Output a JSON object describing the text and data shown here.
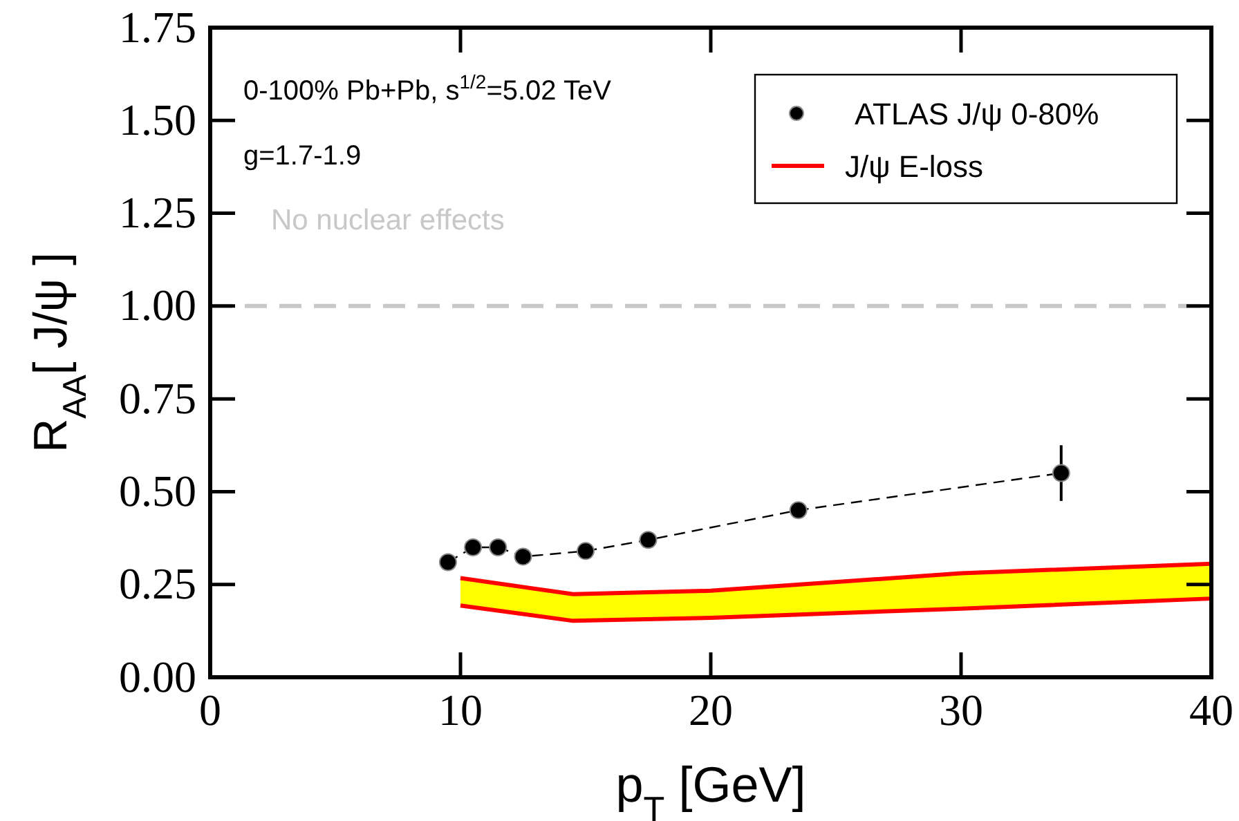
{
  "chart_data": {
    "type": "line",
    "xlabel": "p$_{T}$ [GeV]",
    "ylabel": "R$_{AA}$[ J/ψ ]",
    "annotations": [
      "0-100% Pb+Pb, s$^{1/2}$=5.02 TeV",
      "g=1.7-1.9",
      "No nuclear effects"
    ],
    "xlim": [
      0,
      40
    ],
    "xticks": [
      0,
      10,
      20,
      30,
      40
    ],
    "ylim": [
      0,
      1.75
    ],
    "yticks": [
      {
        "value": 0,
        "label": "0.00"
      },
      {
        "value": 0.25,
        "label": "0.25"
      },
      {
        "value": 0.5,
        "label": "0.50"
      },
      {
        "value": 0.75,
        "label": "0.75"
      },
      {
        "value": 1,
        "label": "1.00"
      },
      {
        "value": 1.25,
        "label": "1.25"
      },
      {
        "value": 1.5,
        "label": "1.50"
      },
      {
        "value": 1.75,
        "label": "1.75"
      }
    ],
    "grid": false,
    "legend": "top right",
    "ref_lines": [
      {
        "axis": "y",
        "value": 1,
        "color": "#c8c8c8",
        "line_style": "dashed"
      }
    ],
    "series": [
      {
        "name": "ATLAS J/ψ 0-80%",
        "marker": "circle",
        "line_style": "dashed",
        "color": "#000000",
        "x": [
          9.5,
          10.5,
          11.5,
          12.5,
          15,
          17.5,
          23.5,
          34
        ],
        "values": [
          0.31,
          0.35,
          0.35,
          0.325,
          0.34,
          0.37,
          0.45,
          0.55
        ],
        "errors": [
          null,
          null,
          null,
          null,
          null,
          null,
          null,
          0.075
        ]
      },
      {
        "type": "area",
        "color": "#ffff00",
        "x": [
          10,
          14.5,
          20,
          30,
          40
        ],
        "values": [
          null,
          null,
          null,
          null,
          null
        ],
        "lower": [
          0.193,
          0.152,
          0.16,
          0.185,
          0.212
        ],
        "upper": [
          0.267,
          0.224,
          0.233,
          0.28,
          0.306
        ]
      },
      {
        "name": "J/ψ E-loss",
        "color": "#ff0000",
        "x": [
          10,
          14.5,
          20,
          30,
          40
        ],
        "values": [
          0.267,
          0.224,
          0.233,
          0.28,
          0.306
        ]
      },
      {
        "color": "#ff0000",
        "x": [
          10,
          14.5,
          20,
          30,
          40
        ],
        "values": [
          0.193,
          0.152,
          0.16,
          0.185,
          0.212
        ]
      }
    ]
  }
}
